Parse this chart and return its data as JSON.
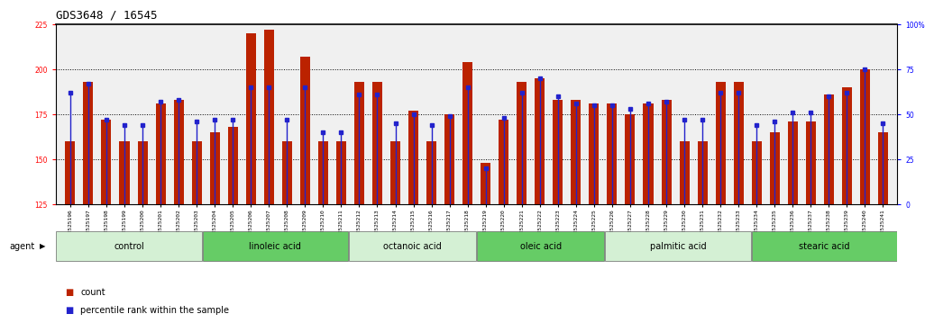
{
  "title": "GDS3648 / 16545",
  "samples": [
    "GSM525196",
    "GSM525197",
    "GSM525198",
    "GSM525199",
    "GSM525200",
    "GSM525201",
    "GSM525202",
    "GSM525203",
    "GSM525204",
    "GSM525205",
    "GSM525206",
    "GSM525207",
    "GSM525208",
    "GSM525209",
    "GSM525210",
    "GSM525211",
    "GSM525212",
    "GSM525213",
    "GSM525214",
    "GSM525215",
    "GSM525216",
    "GSM525217",
    "GSM525218",
    "GSM525219",
    "GSM525220",
    "GSM525221",
    "GSM525222",
    "GSM525223",
    "GSM525224",
    "GSM525225",
    "GSM525226",
    "GSM525227",
    "GSM525228",
    "GSM525229",
    "GSM525230",
    "GSM525231",
    "GSM525232",
    "GSM525233",
    "GSM525234",
    "GSM525235",
    "GSM525236",
    "GSM525237",
    "GSM525238",
    "GSM525239",
    "GSM525240",
    "GSM525241"
  ],
  "counts": [
    160,
    193,
    172,
    160,
    160,
    181,
    183,
    160,
    165,
    168,
    220,
    222,
    160,
    207,
    160,
    160,
    193,
    193,
    160,
    177,
    160,
    175,
    204,
    148,
    172,
    193,
    195,
    183,
    183,
    181,
    181,
    175,
    181,
    183,
    160,
    160,
    193,
    193,
    160,
    165,
    171,
    171,
    186,
    190,
    200,
    165
  ],
  "percentiles": [
    62,
    67,
    47,
    44,
    44,
    57,
    58,
    46,
    47,
    47,
    65,
    65,
    47,
    65,
    40,
    40,
    61,
    61,
    45,
    50,
    44,
    49,
    65,
    20,
    48,
    62,
    70,
    60,
    56,
    55,
    55,
    53,
    56,
    57,
    47,
    47,
    62,
    62,
    44,
    46,
    51,
    51,
    60,
    62,
    75,
    45
  ],
  "groups": [
    {
      "label": "control",
      "start": 0,
      "end": 7,
      "color": "#d4f0d4"
    },
    {
      "label": "linoleic acid",
      "start": 8,
      "end": 15,
      "color": "#66cc66"
    },
    {
      "label": "octanoic acid",
      "start": 16,
      "end": 22,
      "color": "#d4f0d4"
    },
    {
      "label": "oleic acid",
      "start": 23,
      "end": 29,
      "color": "#66cc66"
    },
    {
      "label": "palmitic acid",
      "start": 30,
      "end": 37,
      "color": "#d4f0d4"
    },
    {
      "label": "stearic acid",
      "start": 38,
      "end": 45,
      "color": "#66cc66"
    }
  ],
  "bar_color": "#bb2200",
  "percentile_color": "#2222cc",
  "ylim_left": [
    125,
    225
  ],
  "ylim_right": [
    0,
    100
  ],
  "yticks_left": [
    125,
    150,
    175,
    200,
    225
  ],
  "yticks_right": [
    0,
    25,
    50,
    75,
    100
  ],
  "yticklabels_right": [
    "0",
    "25",
    "50",
    "75",
    "100%"
  ],
  "background_color": "#ffffff",
  "plot_bg_color": "#f0f0f0",
  "bar_width": 0.55,
  "title_fontsize": 9,
  "tick_fontsize": 5.5,
  "label_fontsize": 7,
  "xtick_fontsize": 4.5,
  "agent_label": "agent",
  "legend_count_label": "count",
  "legend_pct_label": "percentile rank within the sample"
}
